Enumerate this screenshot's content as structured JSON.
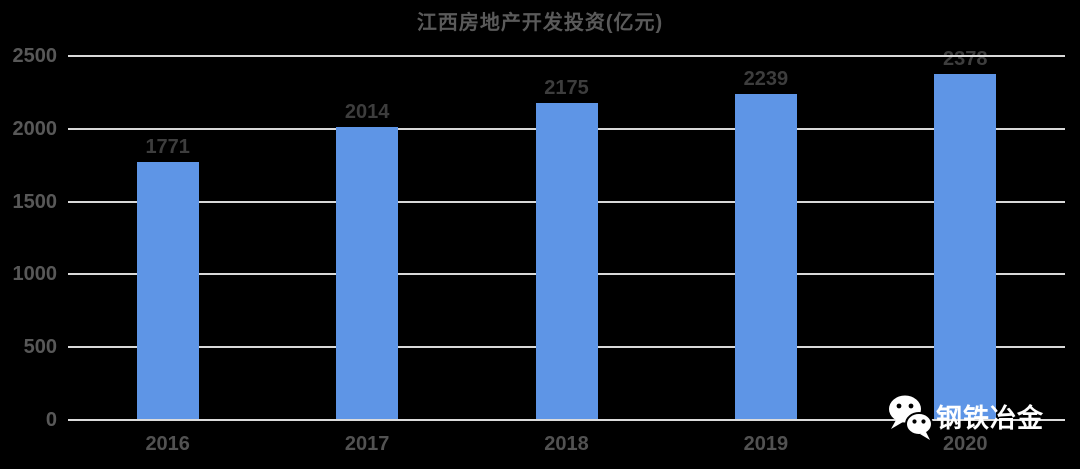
{
  "title": "江西房地产开发投资(亿元)",
  "chart_data": {
    "type": "bar",
    "title": "江西房地产开发投资(亿元)",
    "categories": [
      "2016",
      "2017",
      "2018",
      "2019",
      "2020"
    ],
    "values": [
      1771,
      2014,
      2175,
      2239,
      2378
    ],
    "xlabel": "",
    "ylabel": "",
    "ylim": [
      0,
      2500
    ],
    "yticks": [
      0,
      500,
      1000,
      1500,
      2000,
      2500
    ],
    "grid": true,
    "legend": "none",
    "data_labels_shown": true
  },
  "watermark": {
    "label": "钢铁冶金",
    "icon": "wechat-icon"
  },
  "colors": {
    "background": "#000000",
    "bar": "#5e95e6",
    "gridline": "#d9d9d9",
    "baseline": "#dcdcdc",
    "title_text": "#5a5a5a",
    "ytick_text": "#585858",
    "xtick_text": "#525252",
    "data_label_text": "#3d3d3d",
    "watermark_text": "#ffffff"
  }
}
